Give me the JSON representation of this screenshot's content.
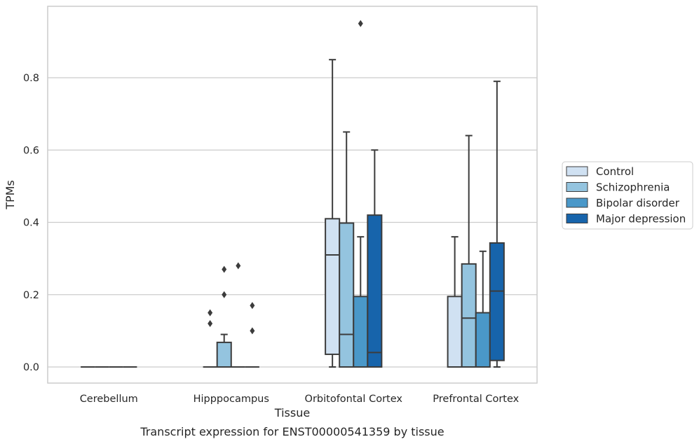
{
  "chart_data": {
    "type": "boxplot",
    "title": "",
    "caption": "Transcript expression for ENST00000541359 by tissue",
    "xlabel": "Tissue",
    "ylabel": "TPMs",
    "ylim": [
      -0.045,
      0.98
    ],
    "yticks": [
      0.0,
      0.2,
      0.4,
      0.6,
      0.8
    ],
    "ytick_labels": [
      "0.0",
      "0.2",
      "0.4",
      "0.6",
      "0.8"
    ],
    "grid": "horizontal",
    "legend_position": "center-right",
    "categories": [
      "Cerebellum",
      "Hipppocampus",
      "Orbitofontal Cortex",
      "Prefrontal Cortex"
    ],
    "series": [
      {
        "name": "Control",
        "color": "#d0e1f2",
        "boxes": [
          {
            "min": 0,
            "q1": 0,
            "median": 0,
            "q3": 0,
            "max": 0,
            "outliers": []
          },
          {
            "min": 0,
            "q1": 0,
            "median": 0,
            "q3": 0,
            "max": 0,
            "outliers": [
              0.12,
              0.15
            ]
          },
          {
            "min": 0,
            "q1": 0.035,
            "median": 0.31,
            "q3": 0.41,
            "max": 0.85,
            "outliers": []
          },
          {
            "min": 0,
            "q1": 0,
            "median": 0,
            "q3": 0.195,
            "max": 0.36,
            "outliers": []
          }
        ]
      },
      {
        "name": "Schizophrenia",
        "color": "#94c4df",
        "boxes": [
          {
            "min": 0,
            "q1": 0,
            "median": 0,
            "q3": 0,
            "max": 0,
            "outliers": []
          },
          {
            "min": 0,
            "q1": 0,
            "median": 0,
            "q3": 0.068,
            "max": 0.09,
            "outliers": [
              0.2,
              0.27
            ]
          },
          {
            "min": 0,
            "q1": 0,
            "median": 0.09,
            "q3": 0.398,
            "max": 0.65,
            "outliers": []
          },
          {
            "min": 0,
            "q1": 0,
            "median": 0.135,
            "q3": 0.285,
            "max": 0.64,
            "outliers": []
          }
        ]
      },
      {
        "name": "Bipolar disorder",
        "color": "#4a98c9",
        "boxes": [
          {
            "min": 0,
            "q1": 0,
            "median": 0,
            "q3": 0,
            "max": 0,
            "outliers": []
          },
          {
            "min": 0,
            "q1": 0,
            "median": 0,
            "q3": 0,
            "max": 0,
            "outliers": [
              0.28
            ]
          },
          {
            "min": 0,
            "q1": 0,
            "median": 0,
            "q3": 0.195,
            "max": 0.36,
            "outliers": [
              0.95
            ]
          },
          {
            "min": 0,
            "q1": 0,
            "median": 0,
            "q3": 0.15,
            "max": 0.32,
            "outliers": []
          }
        ]
      },
      {
        "name": "Major depression",
        "color": "#1764ab",
        "boxes": [
          {
            "min": 0,
            "q1": 0,
            "median": 0,
            "q3": 0,
            "max": 0,
            "outliers": []
          },
          {
            "min": 0,
            "q1": 0,
            "median": 0,
            "q3": 0,
            "max": 0,
            "outliers": [
              0.1,
              0.17
            ]
          },
          {
            "min": 0,
            "q1": 0,
            "median": 0.04,
            "q3": 0.42,
            "max": 0.6,
            "outliers": []
          },
          {
            "min": 0,
            "q1": 0.018,
            "median": 0.21,
            "q3": 0.343,
            "max": 0.79,
            "outliers": []
          }
        ]
      }
    ]
  }
}
